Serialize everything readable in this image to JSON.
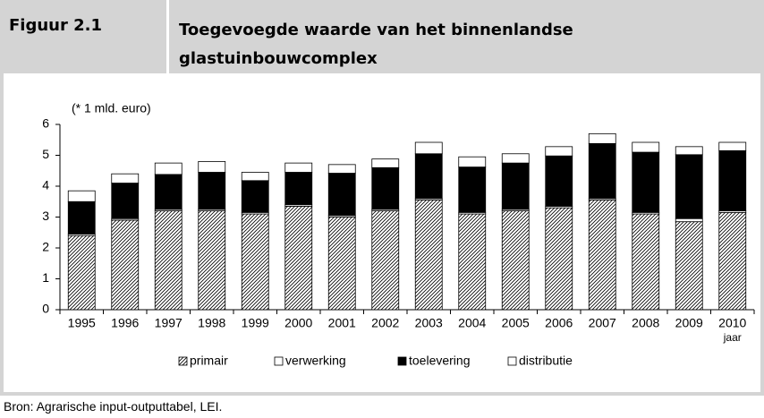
{
  "figure_label": "Figuur 2.1",
  "source": "Bron: Agrarische input-outputtabel, LEI.",
  "chart_data": {
    "type": "stacked-bar",
    "title": "Toegevoegde waarde van het binnenlandse glastuinbouwcomplex",
    "y_unit_label": "(* 1 mld. euro)",
    "x_axis_label": "jaar",
    "categories": [
      "1995",
      "1996",
      "1997",
      "1998",
      "1999",
      "2000",
      "2001",
      "2002",
      "2003",
      "2004",
      "2005",
      "2006",
      "2007",
      "2008",
      "2009",
      "2010"
    ],
    "series": [
      {
        "name": "primair",
        "color": "#ffffff",
        "hatch": true,
        "values": [
          2.4,
          2.9,
          3.2,
          3.2,
          3.1,
          3.35,
          3.0,
          3.2,
          3.55,
          3.1,
          3.2,
          3.3,
          3.55,
          3.1,
          2.85,
          3.15
        ]
      },
      {
        "name": "verwerking",
        "color": "#ffffff",
        "hatch": false,
        "values": [
          0.05,
          0.05,
          0.05,
          0.05,
          0.05,
          0.05,
          0.05,
          0.05,
          0.05,
          0.05,
          0.05,
          0.05,
          0.05,
          0.05,
          0.1,
          0.05
        ]
      },
      {
        "name": "toelevering",
        "color": "#000000",
        "hatch": false,
        "values": [
          1.05,
          1.15,
          1.13,
          1.2,
          1.03,
          1.05,
          1.37,
          1.35,
          1.45,
          1.47,
          1.5,
          1.63,
          1.78,
          1.95,
          2.07,
          1.95
        ]
      },
      {
        "name": "distributie",
        "color": "#ffffff",
        "hatch": false,
        "values": [
          0.35,
          0.3,
          0.37,
          0.35,
          0.27,
          0.3,
          0.28,
          0.28,
          0.37,
          0.33,
          0.3,
          0.3,
          0.32,
          0.32,
          0.26,
          0.27
        ]
      }
    ],
    "ylim": [
      0,
      6
    ],
    "yticks": [
      0,
      1,
      2,
      3,
      4,
      5,
      6
    ],
    "grid": false,
    "legend": "bottom"
  }
}
